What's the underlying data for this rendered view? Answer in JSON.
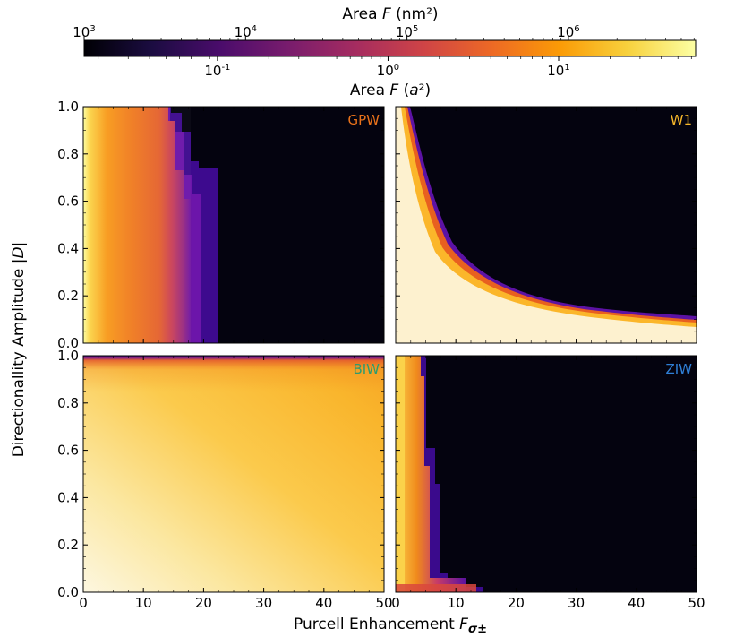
{
  "colorbar": {
    "title_top_prefix": "Area ",
    "title_top_var": "F",
    "title_top_unit": " (nm²)",
    "title_bottom_prefix": "Area ",
    "title_bottom_var": "F",
    "title_bottom_unit_open": " (",
    "title_bottom_unit_var": "a",
    "title_bottom_unit_close": "²)",
    "colormap": "inferno",
    "colors": [
      "#000004",
      "#1b0c41",
      "#4a0c6b",
      "#781c6d",
      "#a52c60",
      "#cf4446",
      "#ed6925",
      "#fb9b06",
      "#f7d13d",
      "#fcffa4"
    ],
    "top_ticks": [
      {
        "base": "10",
        "exp": "3"
      },
      {
        "base": "10",
        "exp": "4"
      },
      {
        "base": "10",
        "exp": "5"
      },
      {
        "base": "10",
        "exp": "6"
      }
    ],
    "bottom_ticks": [
      {
        "base": "10",
        "exp": "-1"
      },
      {
        "base": "10",
        "exp": "0"
      },
      {
        "base": "10",
        "exp": "1"
      }
    ]
  },
  "chart_data": {
    "type": "heatmap",
    "xlabel_prefix": "Purcell Enhancement ",
    "xlabel_var": "F",
    "xlabel_sub": "σ±",
    "ylabel_prefix": "Directionallity Amplitude |",
    "ylabel_var": "D",
    "ylabel_suffix": "|",
    "xlim": [
      0,
      50
    ],
    "ylim": [
      0,
      1
    ],
    "x_ticks": [
      "0",
      "10",
      "20",
      "30",
      "40",
      "50"
    ],
    "y_ticks": [
      "0.0",
      "0.2",
      "0.4",
      "0.6",
      "0.8",
      "1.0"
    ],
    "panels": [
      {
        "label": "GPW",
        "label_color": "#e8711a"
      },
      {
        "label": "W1",
        "label_color": "#f7b72a"
      },
      {
        "label": "BIW",
        "label_color": "#2f9b6e"
      },
      {
        "label": "ZIW",
        "label_color": "#2f7fd6"
      }
    ]
  }
}
